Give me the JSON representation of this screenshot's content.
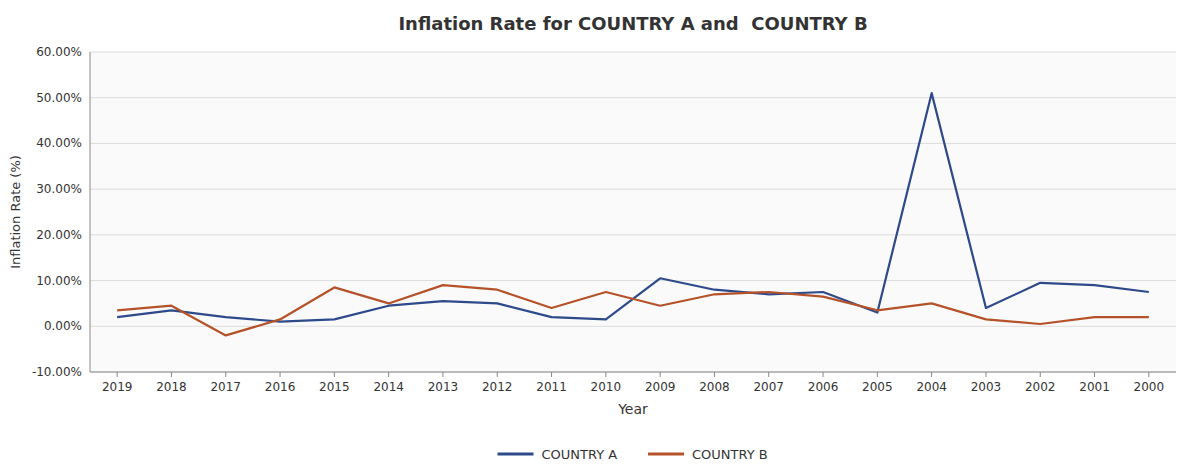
{
  "chart_data": {
    "type": "line",
    "title": "Inflation Rate for COUNTRY A and  COUNTRY B",
    "x_label": "Year",
    "y_label": "Inflation Rate (%)",
    "categories": [
      "2019",
      "2018",
      "2017",
      "2016",
      "2015",
      "2014",
      "2013",
      "2012",
      "2011",
      "2010",
      "2009",
      "2008",
      "2007",
      "2006",
      "2005",
      "2004",
      "2003",
      "2002",
      "2001",
      "2000"
    ],
    "series": [
      {
        "name": "COUNTRY A",
        "color": "#2E4A8B",
        "values": [
          2.0,
          3.5,
          2.0,
          1.0,
          1.5,
          4.5,
          5.5,
          5.0,
          2.0,
          1.5,
          10.5,
          8.0,
          7.0,
          7.5,
          3.0,
          51.0,
          4.0,
          9.5,
          9.0,
          7.5
        ]
      },
      {
        "name": "COUNTRY B",
        "color": "#B5522A",
        "values": [
          3.5,
          4.5,
          -2.0,
          1.5,
          8.5,
          5.0,
          9.0,
          8.0,
          4.0,
          7.5,
          4.5,
          7.0,
          7.5,
          6.5,
          3.5,
          5.0,
          1.5,
          0.5,
          2.0,
          2.0
        ]
      }
    ],
    "ylim": [
      -10,
      60
    ],
    "yticks": [
      {
        "value": -10,
        "label": "-10.00%"
      },
      {
        "value": 0,
        "label": "0.00%"
      },
      {
        "value": 10,
        "label": "10.00%"
      },
      {
        "value": 20,
        "label": "20.00%"
      },
      {
        "value": 30,
        "label": "30.00%"
      },
      {
        "value": 40,
        "label": "40.00%"
      },
      {
        "value": 50,
        "label": "50.00%"
      },
      {
        "value": 60,
        "label": "60.00%"
      }
    ],
    "grid": true,
    "legend": "bottom"
  }
}
